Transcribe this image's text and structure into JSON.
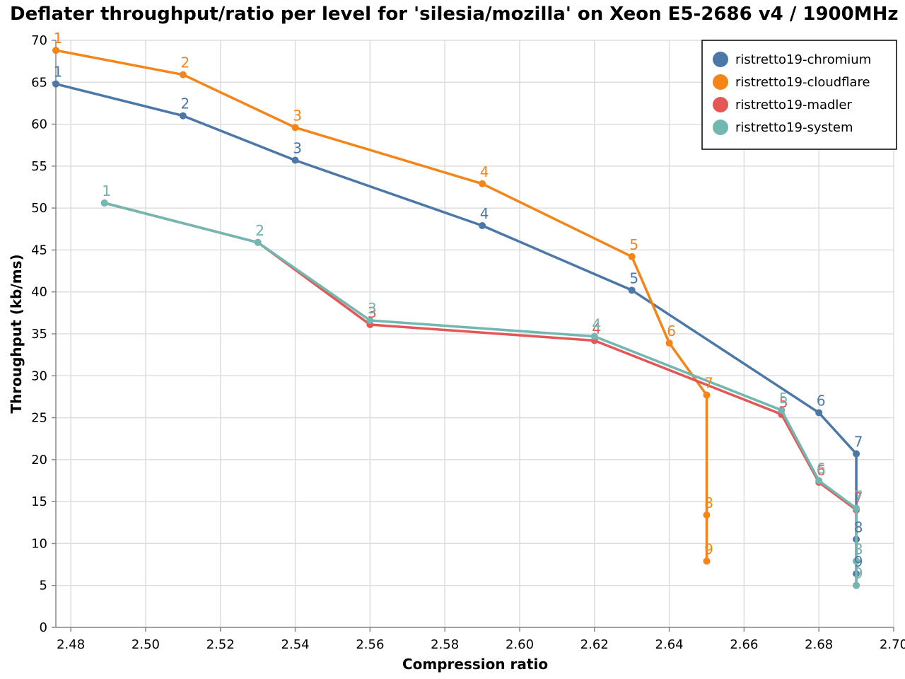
{
  "chart_data": {
    "type": "line",
    "title": "Deflater throughput/ratio per level for 'silesia/mozilla' on Xeon E5-2686 v4 / 1900MHz",
    "xlabel": "Compression ratio",
    "ylabel": "Throughput (kb/ms)",
    "xlim": [
      2.476,
      2.7
    ],
    "ylim": [
      0,
      70
    ],
    "x_ticks": [
      "2.48",
      "2.50",
      "2.52",
      "2.54",
      "2.56",
      "2.58",
      "2.60",
      "2.62",
      "2.64",
      "2.66",
      "2.68",
      "2.70"
    ],
    "y_ticks": [
      "0",
      "5",
      "10",
      "15",
      "20",
      "25",
      "30",
      "35",
      "40",
      "45",
      "50",
      "55",
      "60",
      "65",
      "70"
    ],
    "grid": true,
    "legend_position": "top-right",
    "series": [
      {
        "name": "ristretto19-chromium",
        "color": "#4c78a8",
        "points": [
          {
            "x": 2.476,
            "y": 64.8,
            "label": "1"
          },
          {
            "x": 2.51,
            "y": 61.0,
            "label": "2"
          },
          {
            "x": 2.54,
            "y": 55.7,
            "label": "3"
          },
          {
            "x": 2.59,
            "y": 47.9,
            "label": "4"
          },
          {
            "x": 2.63,
            "y": 40.2,
            "label": "5"
          },
          {
            "x": 2.68,
            "y": 25.6,
            "label": "6"
          },
          {
            "x": 2.69,
            "y": 20.7,
            "label": "7"
          },
          {
            "x": 2.69,
            "y": 10.5,
            "label": "8"
          },
          {
            "x": 2.69,
            "y": 6.4,
            "label": "9"
          }
        ]
      },
      {
        "name": "ristretto19-cloudflare",
        "color": "#f58518",
        "points": [
          {
            "x": 2.476,
            "y": 68.8,
            "label": "1"
          },
          {
            "x": 2.51,
            "y": 65.9,
            "label": "2"
          },
          {
            "x": 2.54,
            "y": 59.6,
            "label": "3"
          },
          {
            "x": 2.59,
            "y": 52.9,
            "label": "4"
          },
          {
            "x": 2.63,
            "y": 44.2,
            "label": "5"
          },
          {
            "x": 2.64,
            "y": 33.9,
            "label": "6"
          },
          {
            "x": 2.65,
            "y": 27.7,
            "label": "7"
          },
          {
            "x": 2.65,
            "y": 13.4,
            "label": "8"
          },
          {
            "x": 2.65,
            "y": 7.9,
            "label": "9"
          }
        ]
      },
      {
        "name": "ristretto19-madler",
        "color": "#e45756",
        "points": [
          {
            "x": 2.489,
            "y": 50.6,
            "label": "1"
          },
          {
            "x": 2.53,
            "y": 45.9,
            "label": "2"
          },
          {
            "x": 2.56,
            "y": 36.1,
            "label": "3"
          },
          {
            "x": 2.62,
            "y": 34.2,
            "label": "4"
          },
          {
            "x": 2.67,
            "y": 25.4,
            "label": "5"
          },
          {
            "x": 2.68,
            "y": 17.3,
            "label": "6"
          },
          {
            "x": 2.69,
            "y": 14.0,
            "label": "7"
          },
          {
            "x": 2.69,
            "y": 7.9,
            "label": "8"
          },
          {
            "x": 2.69,
            "y": 5.0,
            "label": "9"
          }
        ]
      },
      {
        "name": "ristretto19-system",
        "color": "#72b7b2",
        "points": [
          {
            "x": 2.489,
            "y": 50.6,
            "label": "1"
          },
          {
            "x": 2.53,
            "y": 45.9,
            "label": "2"
          },
          {
            "x": 2.56,
            "y": 36.6,
            "label": "3"
          },
          {
            "x": 2.62,
            "y": 34.7,
            "label": "4"
          },
          {
            "x": 2.67,
            "y": 25.9,
            "label": "5"
          },
          {
            "x": 2.68,
            "y": 17.5,
            "label": "6"
          },
          {
            "x": 2.69,
            "y": 14.2,
            "label": "7"
          },
          {
            "x": 2.69,
            "y": 7.9,
            "label": "8"
          },
          {
            "x": 2.69,
            "y": 5.0,
            "label": "9"
          }
        ]
      }
    ]
  }
}
